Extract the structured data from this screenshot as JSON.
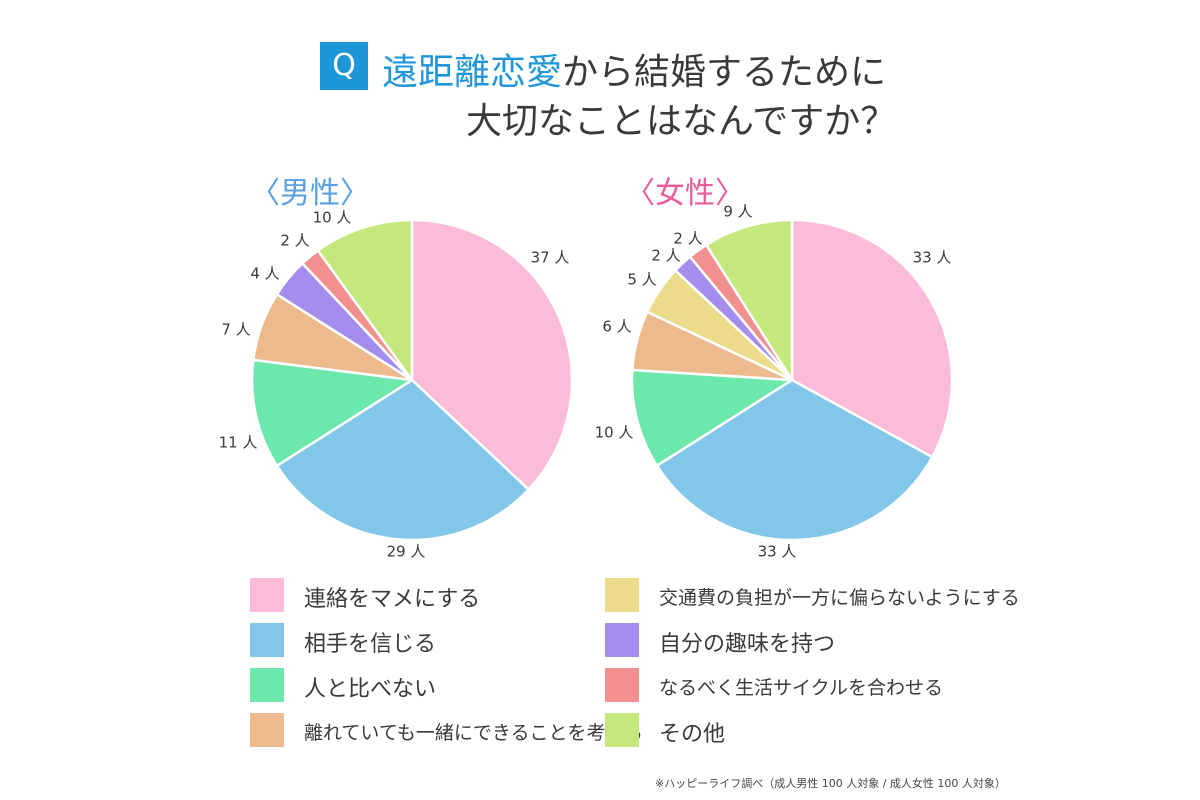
{
  "title": {
    "q_badge": "Q",
    "line1_accent": "遠距離恋愛",
    "line1_rest": "から結婚するために",
    "line2": "大切なことはなんですか？"
  },
  "chart_data": [
    {
      "type": "pie",
      "title": "〈男性〉",
      "unit": "人",
      "categories": [
        "連絡をマメにする",
        "相手を信じる",
        "人と比べない",
        "離れていても一緒にできることを考える",
        "自分の趣味を持つ",
        "なるべく生活サイクルを合わせる",
        "その他"
      ],
      "values": [
        37,
        29,
        11,
        7,
        4,
        2,
        10
      ],
      "labels": [
        "37 人",
        "29 人",
        "11 人",
        "7 人",
        "4 人",
        "2 人",
        "10 人"
      ],
      "colors": [
        "#fcbbd9",
        "#82c6ea",
        "#6de8ac",
        "#ecba8c",
        "#a58ded",
        "#f29090",
        "#c4e87c"
      ]
    },
    {
      "type": "pie",
      "title": "〈女性〉",
      "unit": "人",
      "categories": [
        "連絡をマメにする",
        "相手を信じる",
        "人と比べない",
        "離れていても一緒にできることを考える",
        "交通費の負担が一方に偏らないようにする",
        "自分の趣味を持つ",
        "なるべく生活サイクルを合わせる",
        "その他"
      ],
      "values": [
        33,
        33,
        10,
        6,
        5,
        2,
        2,
        9
      ],
      "labels": [
        "33 人",
        "33 人",
        "10 人",
        "6 人",
        "5 人",
        "2 人",
        "2 人",
        "9 人"
      ],
      "colors": [
        "#fcbbd9",
        "#82c6ea",
        "#6de8ac",
        "#ecba8c",
        "#ecdb8a",
        "#a58ded",
        "#f29090",
        "#c4e87c"
      ]
    }
  ],
  "legend": {
    "left": [
      {
        "label": "連絡をマメにする",
        "color": "#fcbbd9"
      },
      {
        "label": "相手を信じる",
        "color": "#82c6ea"
      },
      {
        "label": "人と比べない",
        "color": "#6de8ac"
      },
      {
        "label": "離れていても一緒にできることを考える",
        "color": "#ecba8c"
      }
    ],
    "right": [
      {
        "label": "交通費の負担が一方に偏らないようにする",
        "color": "#ecdb8a"
      },
      {
        "label": "自分の趣味を持つ",
        "color": "#a58ded"
      },
      {
        "label": "なるべく生活サイクルを合わせる",
        "color": "#f29090"
      },
      {
        "label": "その他",
        "color": "#c4e87c"
      }
    ]
  },
  "footnote": "※ハッピーライフ調べ（成人男性 100 人対象 / 成人女性 100 人対象）"
}
